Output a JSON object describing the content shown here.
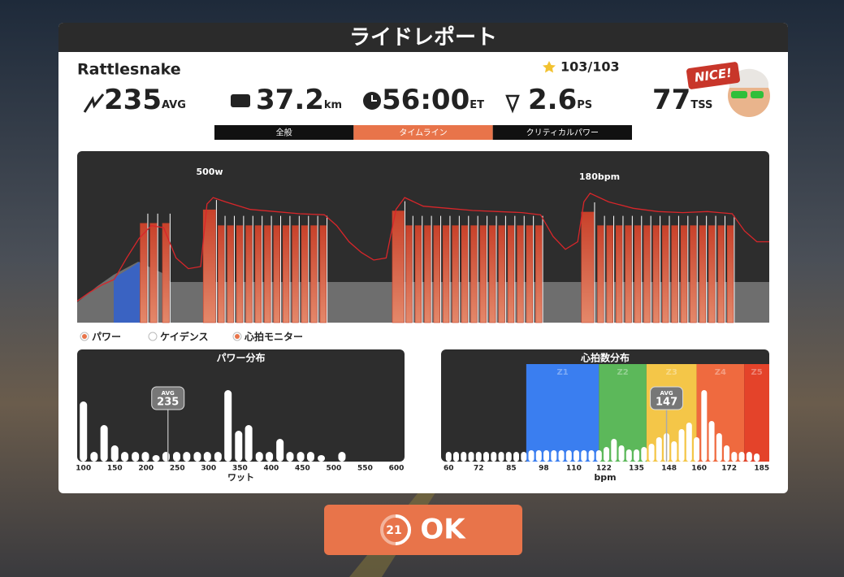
{
  "header": {
    "title": "ライドレポート"
  },
  "route": "Rattlesnake",
  "xp": "103/103",
  "badge": "NICE!",
  "stats": [
    {
      "value": 235,
      "unit": "AVG"
    },
    {
      "value": 37.2,
      "unit": "km"
    },
    {
      "value": "56:00",
      "unit": "ET"
    },
    {
      "value": 2.6,
      "unit": "PS"
    },
    {
      "value": 77,
      "unit": "TSS"
    }
  ],
  "tabs": [
    {
      "label": "全般",
      "active": false
    },
    {
      "label": "タイムライン",
      "active": true
    },
    {
      "label": "クリティカルパワー",
      "active": false
    }
  ],
  "timeline": {
    "xlim": [
      0,
      56
    ],
    "ylim": [
      0,
      760
    ],
    "y2lim": [
      60,
      219
    ],
    "power": {
      "color": "#c8412a",
      "start": [
        5.1,
        5.9,
        6.9,
        10.2,
        11.4,
        12.15,
        12.9,
        13.65,
        14.4,
        15.15,
        15.9,
        16.65,
        17.4,
        18.15,
        18.9,
        19.65,
        25.5,
        26.6,
        27.35,
        28.1,
        28.85,
        29.6,
        30.35,
        31.1,
        31.85,
        32.6,
        33.35,
        34.1,
        34.85,
        35.6,
        36.35,
        37.1,
        40.8,
        42.1,
        42.85,
        43.6,
        44.35,
        45.1,
        45.85,
        46.6,
        47.35,
        48.1,
        48.85,
        49.6,
        50.35,
        51.1,
        51.85,
        52.6
      ],
      "end": [
        5.65,
        6.45,
        7.45,
        11.2,
        11.9,
        12.65,
        13.4,
        14.15,
        14.9,
        15.65,
        16.4,
        17.15,
        17.9,
        18.65,
        19.4,
        20.15,
        26.45,
        27.1,
        27.85,
        28.6,
        29.35,
        30.1,
        30.85,
        31.6,
        32.35,
        33.1,
        33.85,
        34.6,
        35.35,
        36.1,
        36.85,
        37.6,
        41.8,
        42.6,
        43.35,
        44.1,
        44.85,
        45.6,
        46.35,
        47.1,
        47.85,
        48.6,
        49.35,
        50.1,
        50.85,
        51.6,
        52.35,
        53.1
      ],
      "values": [
        440,
        440,
        440,
        500,
        430,
        430,
        430,
        430,
        430,
        430,
        430,
        430,
        430,
        430,
        430,
        430,
        495,
        430,
        430,
        430,
        430,
        430,
        430,
        430,
        430,
        430,
        430,
        430,
        430,
        430,
        430,
        430,
        490,
        430,
        430,
        430,
        430,
        430,
        430,
        430,
        430,
        430,
        430,
        430,
        430,
        430,
        430,
        430
      ]
    },
    "heart_rate": {
      "color": "#d8262a",
      "x": [
        0,
        1,
        2,
        3,
        4,
        5,
        6,
        7,
        8,
        9,
        10,
        10.5,
        11,
        12,
        14,
        16,
        18,
        20,
        21,
        22,
        23,
        24,
        25,
        25.8,
        26.5,
        28,
        30,
        32,
        34,
        36,
        37.5,
        38.5,
        39.5,
        40.5,
        41,
        41.5,
        43,
        45,
        47,
        49,
        51,
        53,
        54,
        55,
        56
      ],
      "values": [
        80,
        88,
        95,
        100,
        120,
        138,
        150,
        148,
        120,
        110,
        112,
        170,
        176,
        172,
        165,
        163,
        161,
        160,
        150,
        135,
        125,
        118,
        120,
        165,
        176,
        168,
        166,
        164,
        163,
        162,
        160,
        140,
        128,
        135,
        172,
        180,
        172,
        166,
        163,
        162,
        163,
        161,
        145,
        135,
        135
      ]
    },
    "annotations": [
      "500w",
      "180bpm"
    ]
  },
  "legend": [
    {
      "label": "パワー",
      "on": true
    },
    {
      "label": "ケイデンス",
      "on": false
    },
    {
      "label": "心拍モニター",
      "on": true
    }
  ],
  "power_distribution": {
    "title": "パワー分布",
    "xlabel": "ワット",
    "avg_label": "AVG",
    "avg": 235,
    "xlim": [
      90,
      613
    ],
    "ylim": [
      0,
      120
    ],
    "xticks": [
      100,
      150,
      200,
      250,
      300,
      350,
      400,
      450,
      500,
      550,
      600
    ],
    "x": [
      100,
      117,
      133,
      150,
      166,
      183,
      199,
      216,
      232,
      249,
      265,
      282,
      298,
      315,
      331,
      348,
      364,
      381,
      397,
      414,
      430,
      447,
      463,
      480,
      513
    ],
    "values": [
      74,
      12,
      45,
      20,
      12,
      12,
      12,
      8,
      12,
      12,
      12,
      12,
      12,
      12,
      88,
      38,
      45,
      12,
      12,
      28,
      12,
      12,
      12,
      8,
      12
    ]
  },
  "hr_distribution": {
    "title": "心拍数分布",
    "xlabel": "bpm",
    "avg_label": "AVG",
    "avg": 147,
    "xlim": [
      57,
      188
    ],
    "ylim": [
      0,
      120
    ],
    "xticks": [
      60,
      72,
      85,
      98,
      110,
      122,
      135,
      148,
      160,
      172,
      185
    ],
    "zones": [
      {
        "label": "Z1",
        "from": 91,
        "to": 120,
        "color": "#3a7ef0"
      },
      {
        "label": "Z2",
        "from": 120,
        "to": 139,
        "color": "#5cb85a"
      },
      {
        "label": "Z3",
        "from": 139,
        "to": 159,
        "color": "#f4c648"
      },
      {
        "label": "Z4",
        "from": 159,
        "to": 178,
        "color": "#ef6a3f"
      },
      {
        "label": "Z5",
        "from": 178,
        "to": 188,
        "color": "#e4432a"
      }
    ],
    "x": [
      60,
      63,
      66,
      69,
      72,
      75,
      78,
      81,
      84,
      87,
      90,
      93,
      96,
      99,
      102,
      105,
      108,
      111,
      114,
      117,
      120,
      123,
      126,
      129,
      132,
      135,
      138,
      141,
      144,
      147,
      150,
      153,
      156,
      159,
      162,
      165,
      168,
      171,
      174,
      177,
      180,
      183
    ],
    "values": [
      12,
      12,
      12,
      12,
      12,
      12,
      12,
      12,
      12,
      12,
      12,
      14,
      14,
      14,
      14,
      14,
      14,
      14,
      14,
      14,
      14,
      18,
      28,
      20,
      15,
      15,
      18,
      22,
      30,
      35,
      25,
      40,
      48,
      30,
      88,
      50,
      35,
      20,
      12,
      12,
      12,
      10
    ]
  },
  "button": {
    "timer": 21,
    "label": "OK"
  }
}
